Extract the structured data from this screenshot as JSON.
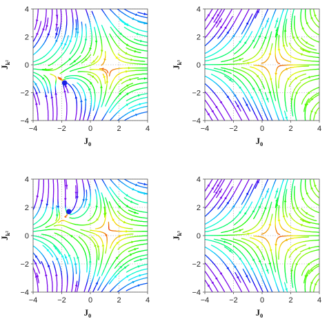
{
  "chart_data": [
    {
      "type": "streamplot",
      "panel": "top-left",
      "xlabel": "J",
      "xlabel_sub": "0",
      "ylabel": "J",
      "ylabel_sub": "k²",
      "xlim": [
        -4,
        4
      ],
      "ylim": [
        -4,
        4
      ],
      "xticks": [
        "−4",
        "−2",
        "0",
        "2",
        "4"
      ],
      "yticks": [
        "−4",
        "−2",
        "0",
        "2",
        "4"
      ],
      "grid": true,
      "field": "saddle",
      "flow_sign": -1,
      "fixed_points": [
        {
          "x": -1.8,
          "y": -1.3
        }
      ],
      "colormap": "rainbow: red = slow, violet = fast"
    },
    {
      "type": "streamplot",
      "panel": "top-right",
      "xlabel": "J",
      "xlabel_sub": "0",
      "ylabel": "J",
      "ylabel_sub": "k³",
      "xlim": [
        -4,
        4
      ],
      "ylim": [
        -4,
        4
      ],
      "xticks": [
        "−4",
        "−2",
        "0",
        "2",
        "4"
      ],
      "yticks": [
        "−4",
        "−2",
        "0",
        "2",
        "4"
      ],
      "grid": true,
      "field": "saddle",
      "flow_sign": 1,
      "fixed_points": [],
      "colormap": "rainbow: red = slow, violet = fast"
    },
    {
      "type": "streamplot",
      "panel": "bottom-left",
      "xlabel": "J",
      "xlabel_sub": "0",
      "ylabel": "J",
      "ylabel_sub": "k²",
      "xlim": [
        -4,
        4
      ],
      "ylim": [
        -4,
        4
      ],
      "xticks": [
        "−4",
        "−2",
        "0",
        "2",
        "4"
      ],
      "yticks": [
        "−4",
        "−2",
        "0",
        "2",
        "4"
      ],
      "grid": true,
      "field": "saddle",
      "flow_sign": -1,
      "fixed_points": [
        {
          "x": -1.5,
          "y": 1.7
        }
      ],
      "colormap": "rainbow: red = slow, violet = fast"
    },
    {
      "type": "streamplot",
      "panel": "bottom-right",
      "xlabel": "J",
      "xlabel_sub": "0",
      "ylabel": "J",
      "ylabel_sub": "k³",
      "xlim": [
        -4,
        4
      ],
      "ylim": [
        -4,
        4
      ],
      "xticks": [
        "−4",
        "−2",
        "0",
        "2",
        "4"
      ],
      "yticks": [
        "−4",
        "−2",
        "0",
        "2",
        "4"
      ],
      "grid": true,
      "field": "saddle",
      "flow_sign": 1,
      "fixed_points": [],
      "colormap": "rainbow: red = slow, violet = fast"
    }
  ],
  "colors": {
    "fixed_point": "#1b1fe6",
    "grid": "#9a9a9a",
    "frame": "#555555"
  }
}
